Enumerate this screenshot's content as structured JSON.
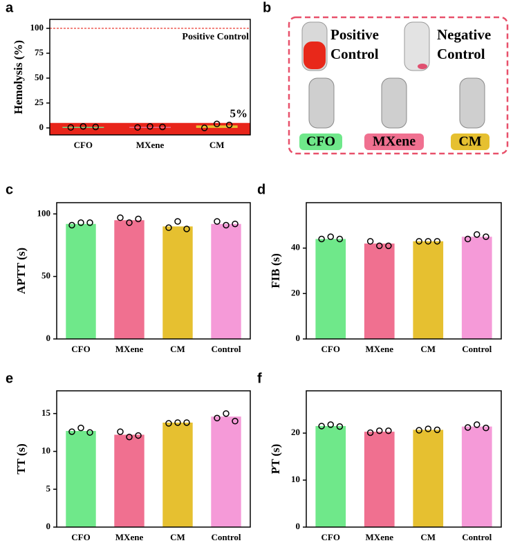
{
  "chart_data": [
    {
      "type": "bar",
      "label": "a",
      "ylabel": "Hemolysis (%)",
      "categories": [
        "CFO",
        "MXene",
        "CM"
      ],
      "values": [
        1,
        1,
        2.5
      ],
      "points": [
        [
          0.5,
          1.5,
          1
        ],
        [
          0.5,
          1.5,
          1
        ],
        [
          0,
          4,
          3
        ]
      ],
      "colors": [
        "#6fe88a",
        "#f07090",
        "#e6c030"
      ],
      "ylim": [
        -7,
        109
      ],
      "yticks": [
        0,
        25,
        50,
        75,
        100
      ],
      "threshold": {
        "value": 5,
        "label": "5%",
        "color": "#e8251a"
      },
      "reference": {
        "value": 100,
        "label": "Positive Control",
        "color": "#e8251a"
      }
    },
    {
      "type": "bar",
      "label": "c",
      "ylabel": "APTT (s)",
      "categories": [
        "CFO",
        "MXene",
        "CM",
        "Control"
      ],
      "values": [
        92,
        95,
        90,
        92
      ],
      "points": [
        [
          91,
          93,
          93
        ],
        [
          97,
          93,
          96
        ],
        [
          89,
          94,
          88
        ],
        [
          94,
          91,
          92
        ]
      ],
      "colors": [
        "#6fe88a",
        "#f07090",
        "#e6c030",
        "#f59ad8"
      ],
      "ylim": [
        0,
        109
      ],
      "yticks": [
        0,
        50,
        100
      ]
    },
    {
      "type": "bar",
      "label": "d",
      "ylabel": "FIB (s)",
      "categories": [
        "CFO",
        "MXene",
        "CM",
        "Control"
      ],
      "values": [
        44,
        42,
        43,
        45
      ],
      "points": [
        [
          44,
          45,
          44
        ],
        [
          43,
          41,
          41
        ],
        [
          43,
          43,
          43
        ],
        [
          44,
          46,
          45
        ]
      ],
      "colors": [
        "#6fe88a",
        "#f07090",
        "#e6c030",
        "#f59ad8"
      ],
      "ylim": [
        0,
        60
      ],
      "yticks": [
        0,
        20,
        40
      ]
    },
    {
      "type": "bar",
      "label": "e",
      "ylabel": "TT (s)",
      "categories": [
        "CFO",
        "MXene",
        "CM",
        "Control"
      ],
      "values": [
        12.7,
        12.2,
        13.8,
        14.6
      ],
      "points": [
        [
          12.6,
          13.1,
          12.5
        ],
        [
          12.6,
          11.9,
          12.1
        ],
        [
          13.7,
          13.8,
          13.8
        ],
        [
          14.4,
          15.0,
          14.0
        ]
      ],
      "colors": [
        "#6fe88a",
        "#f07090",
        "#e6c030",
        "#f59ad8"
      ],
      "ylim": [
        0,
        18
      ],
      "yticks": [
        0,
        5,
        10,
        15
      ]
    },
    {
      "type": "bar",
      "label": "f",
      "ylabel": "PT (s)",
      "categories": [
        "CFO",
        "MXene",
        "CM",
        "Control"
      ],
      "values": [
        21.5,
        20.3,
        20.7,
        21.4
      ],
      "points": [
        [
          21.5,
          21.8,
          21.4
        ],
        [
          20.1,
          20.5,
          20.5
        ],
        [
          20.6,
          20.9,
          20.7
        ],
        [
          21.2,
          21.8,
          21.1
        ]
      ],
      "colors": [
        "#6fe88a",
        "#f07090",
        "#e6c030",
        "#f59ad8"
      ],
      "ylim": [
        0,
        29
      ],
      "yticks": [
        0,
        10,
        20
      ]
    }
  ],
  "photo": {
    "label": "b",
    "positive": [
      "Positive",
      "Control"
    ],
    "negative": [
      "Negative",
      "Control"
    ],
    "samples": [
      "CFO",
      "MXene",
      "CM"
    ]
  }
}
